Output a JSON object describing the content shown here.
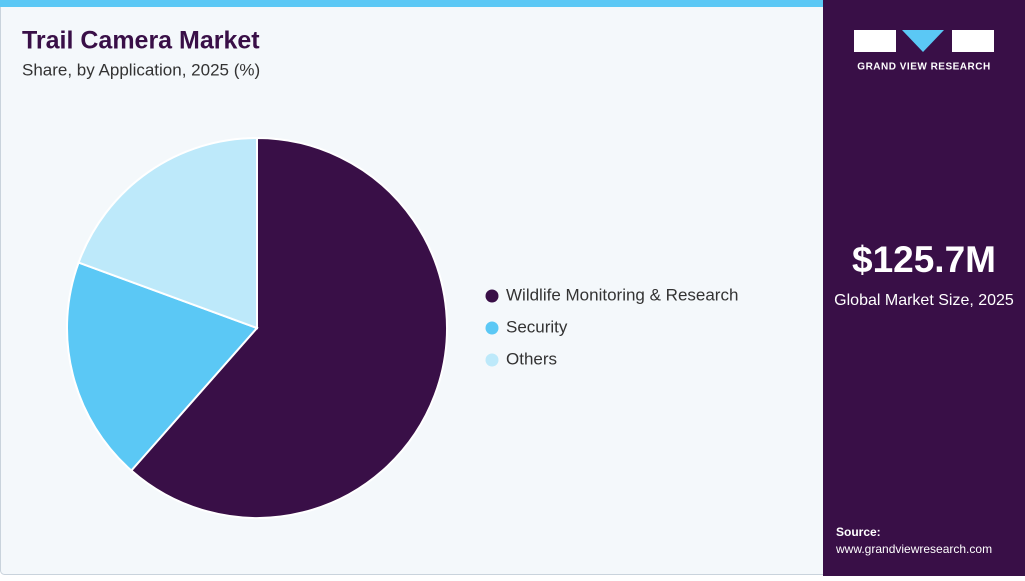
{
  "chart_data": {
    "type": "pie",
    "title": "Trail Camera Market",
    "subtitle": "Share, by Application, 2025 (%)",
    "categories": [
      "Wildlife Monitoring & Research",
      "Security",
      "Others"
    ],
    "values": [
      61.5,
      19.1,
      19.4
    ],
    "colors": [
      "#390f47",
      "#5bc8f5",
      "#bde9fa"
    ]
  },
  "sidebar": {
    "brand": "GRAND VIEW RESEARCH",
    "market_value": "$125.7M",
    "market_label": "Global Market Size, 2025",
    "source_label": "Source:",
    "source_url": "www.grandviewresearch.com"
  }
}
